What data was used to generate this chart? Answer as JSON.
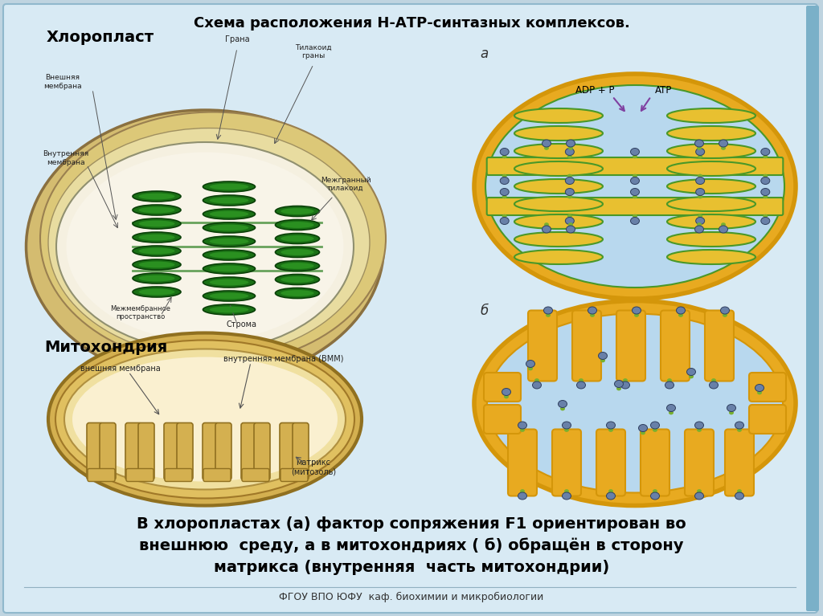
{
  "title": "Схема расположения Н-АТР-синтазных комплексов.",
  "label_a": "а",
  "label_b": "б",
  "label_chloroplast": "Хлоропласт",
  "label_mitochondria": "Митохондрия",
  "label_outer_membrane_mito": "внешняя мембрана",
  "label_inner_membrane_mito": "внутренняя мембрана (ВММ)",
  "label_matrix": "матрикс\n(митозоль)",
  "label_grana": "Грана",
  "label_thylakoid_grana": "Тилакоид\nграны",
  "label_intermembrane": "Межмембранное\nпространство",
  "label_stroma": "Строма",
  "label_inter_thylakoid": "Межгранный\nтилакоид",
  "label_outer_mem_chloro": "Внешняя\nмембрана",
  "label_inner_mem_chloro": "Внутренняя\nмембрана",
  "label_adp": "ADP + P",
  "label_atp": "ATP",
  "bottom_text_line1": "В хлоропластах (а) фактор сопряжения F1 ориентирован во",
  "bottom_text_line2": "внешнюю  среду, а в митохондриях ( б) обращён в сторону",
  "bottom_text_line3": "матрикса (внутренняя  часть митохондрии)",
  "footer_text": "ФГОУ ВПО ЮФУ  каф. биохимии и микробиологии",
  "bg_color": "#bfd4e0",
  "panel_bg": "#d8eaf4",
  "orange_outer": "#d4960a",
  "orange_fill": "#e8aa20",
  "orange_inner": "#f5c840",
  "light_blue_stroma": "#b8d8ee",
  "yellow_thylakoid": "#e8c030",
  "green_thylakoid": "#4a9828",
  "blue_atp_body": "#6880a8",
  "green_atp_stem": "#78b030",
  "sandy_outer": "#d8c080",
  "sandy_mid": "#e8d898",
  "cream_inner": "#f8f0d0",
  "dark_green": "#1a6010",
  "mid_green": "#2a8020",
  "light_green_stroma_chloro": "#f0ead8",
  "mito_outer_color": "#c8a030",
  "mito_inner_color": "#e8d888",
  "mito_matrix_color": "#f8f0d0",
  "mito_crista_color": "#d4b048"
}
